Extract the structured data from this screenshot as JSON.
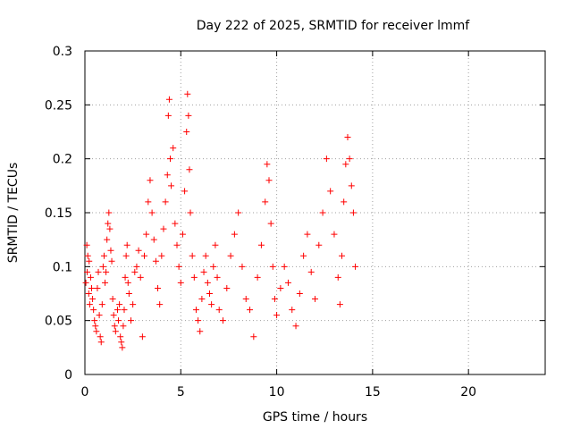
{
  "chart_data": {
    "type": "scatter",
    "title": "Day 222 of 2025, SRMTID for receiver lmmf",
    "xlabel": "GPS time / hours",
    "ylabel": "SRMTID / TECUs",
    "xlim": [
      0,
      24
    ],
    "ylim": [
      0,
      0.3
    ],
    "xticks": [
      "0",
      "5",
      "10",
      "15",
      "20"
    ],
    "yticks": [
      "0",
      "0.05",
      "0.1",
      "0.15",
      "0.2",
      "0.25",
      "0.3"
    ],
    "grid": true,
    "marker": "+",
    "color": "#ff0000",
    "series": [
      {
        "points": [
          [
            0.05,
            0.085
          ],
          [
            0.1,
            0.12
          ],
          [
            0.12,
            0.095
          ],
          [
            0.15,
            0.11
          ],
          [
            0.2,
            0.075
          ],
          [
            0.22,
            0.105
          ],
          [
            0.25,
            0.065
          ],
          [
            0.3,
            0.09
          ],
          [
            0.35,
            0.08
          ],
          [
            0.4,
            0.07
          ],
          [
            0.45,
            0.06
          ],
          [
            0.5,
            0.05
          ],
          [
            0.55,
            0.045
          ],
          [
            0.6,
            0.04
          ],
          [
            0.65,
            0.08
          ],
          [
            0.7,
            0.095
          ],
          [
            0.75,
            0.055
          ],
          [
            0.8,
            0.035
          ],
          [
            0.85,
            0.03
          ],
          [
            0.9,
            0.065
          ],
          [
            0.95,
            0.1
          ],
          [
            1.0,
            0.11
          ],
          [
            1.05,
            0.085
          ],
          [
            1.1,
            0.095
          ],
          [
            1.15,
            0.125
          ],
          [
            1.2,
            0.14
          ],
          [
            1.25,
            0.15
          ],
          [
            1.3,
            0.135
          ],
          [
            1.35,
            0.115
          ],
          [
            1.4,
            0.105
          ],
          [
            1.45,
            0.07
          ],
          [
            1.5,
            0.055
          ],
          [
            1.55,
            0.045
          ],
          [
            1.6,
            0.04
          ],
          [
            1.7,
            0.06
          ],
          [
            1.75,
            0.05
          ],
          [
            1.8,
            0.065
          ],
          [
            1.85,
            0.035
          ],
          [
            1.9,
            0.03
          ],
          [
            1.95,
            0.025
          ],
          [
            2.0,
            0.045
          ],
          [
            2.05,
            0.06
          ],
          [
            2.1,
            0.09
          ],
          [
            2.15,
            0.11
          ],
          [
            2.2,
            0.12
          ],
          [
            2.25,
            0.085
          ],
          [
            2.3,
            0.075
          ],
          [
            2.4,
            0.05
          ],
          [
            2.5,
            0.065
          ],
          [
            2.6,
            0.095
          ],
          [
            2.7,
            0.1
          ],
          [
            2.8,
            0.115
          ],
          [
            2.9,
            0.09
          ],
          [
            3.0,
            0.035
          ],
          [
            3.1,
            0.11
          ],
          [
            3.2,
            0.13
          ],
          [
            3.3,
            0.16
          ],
          [
            3.4,
            0.18
          ],
          [
            3.5,
            0.15
          ],
          [
            3.6,
            0.125
          ],
          [
            3.7,
            0.105
          ],
          [
            3.8,
            0.08
          ],
          [
            3.9,
            0.065
          ],
          [
            4.0,
            0.11
          ],
          [
            4.1,
            0.135
          ],
          [
            4.2,
            0.16
          ],
          [
            4.3,
            0.185
          ],
          [
            4.35,
            0.24
          ],
          [
            4.4,
            0.255
          ],
          [
            4.45,
            0.2
          ],
          [
            4.5,
            0.175
          ],
          [
            4.6,
            0.21
          ],
          [
            4.7,
            0.14
          ],
          [
            4.8,
            0.12
          ],
          [
            4.9,
            0.1
          ],
          [
            5.0,
            0.085
          ],
          [
            5.1,
            0.13
          ],
          [
            5.2,
            0.17
          ],
          [
            5.3,
            0.225
          ],
          [
            5.35,
            0.26
          ],
          [
            5.4,
            0.24
          ],
          [
            5.45,
            0.19
          ],
          [
            5.5,
            0.15
          ],
          [
            5.6,
            0.11
          ],
          [
            5.7,
            0.09
          ],
          [
            5.8,
            0.06
          ],
          [
            5.9,
            0.05
          ],
          [
            6.0,
            0.04
          ],
          [
            6.1,
            0.07
          ],
          [
            6.2,
            0.095
          ],
          [
            6.3,
            0.11
          ],
          [
            6.4,
            0.085
          ],
          [
            6.5,
            0.075
          ],
          [
            6.6,
            0.065
          ],
          [
            6.7,
            0.1
          ],
          [
            6.8,
            0.12
          ],
          [
            6.9,
            0.09
          ],
          [
            7.0,
            0.06
          ],
          [
            7.2,
            0.05
          ],
          [
            7.4,
            0.08
          ],
          [
            7.6,
            0.11
          ],
          [
            7.8,
            0.13
          ],
          [
            8.0,
            0.15
          ],
          [
            8.2,
            0.1
          ],
          [
            8.4,
            0.07
          ],
          [
            8.6,
            0.06
          ],
          [
            8.8,
            0.035
          ],
          [
            9.0,
            0.09
          ],
          [
            9.2,
            0.12
          ],
          [
            9.4,
            0.16
          ],
          [
            9.5,
            0.195
          ],
          [
            9.6,
            0.18
          ],
          [
            9.7,
            0.14
          ],
          [
            9.8,
            0.1
          ],
          [
            9.9,
            0.07
          ],
          [
            10.0,
            0.055
          ],
          [
            10.2,
            0.08
          ],
          [
            10.4,
            0.1
          ],
          [
            10.6,
            0.085
          ],
          [
            10.8,
            0.06
          ],
          [
            11.0,
            0.045
          ],
          [
            11.2,
            0.075
          ],
          [
            11.4,
            0.11
          ],
          [
            11.6,
            0.13
          ],
          [
            11.8,
            0.095
          ],
          [
            12.0,
            0.07
          ],
          [
            12.2,
            0.12
          ],
          [
            12.4,
            0.15
          ],
          [
            12.6,
            0.2
          ],
          [
            12.8,
            0.17
          ],
          [
            13.0,
            0.13
          ],
          [
            13.2,
            0.09
          ],
          [
            13.3,
            0.065
          ],
          [
            13.4,
            0.11
          ],
          [
            13.5,
            0.16
          ],
          [
            13.6,
            0.195
          ],
          [
            13.7,
            0.22
          ],
          [
            13.8,
            0.2
          ],
          [
            13.9,
            0.175
          ],
          [
            14.0,
            0.15
          ],
          [
            14.1,
            0.1
          ]
        ]
      }
    ]
  }
}
